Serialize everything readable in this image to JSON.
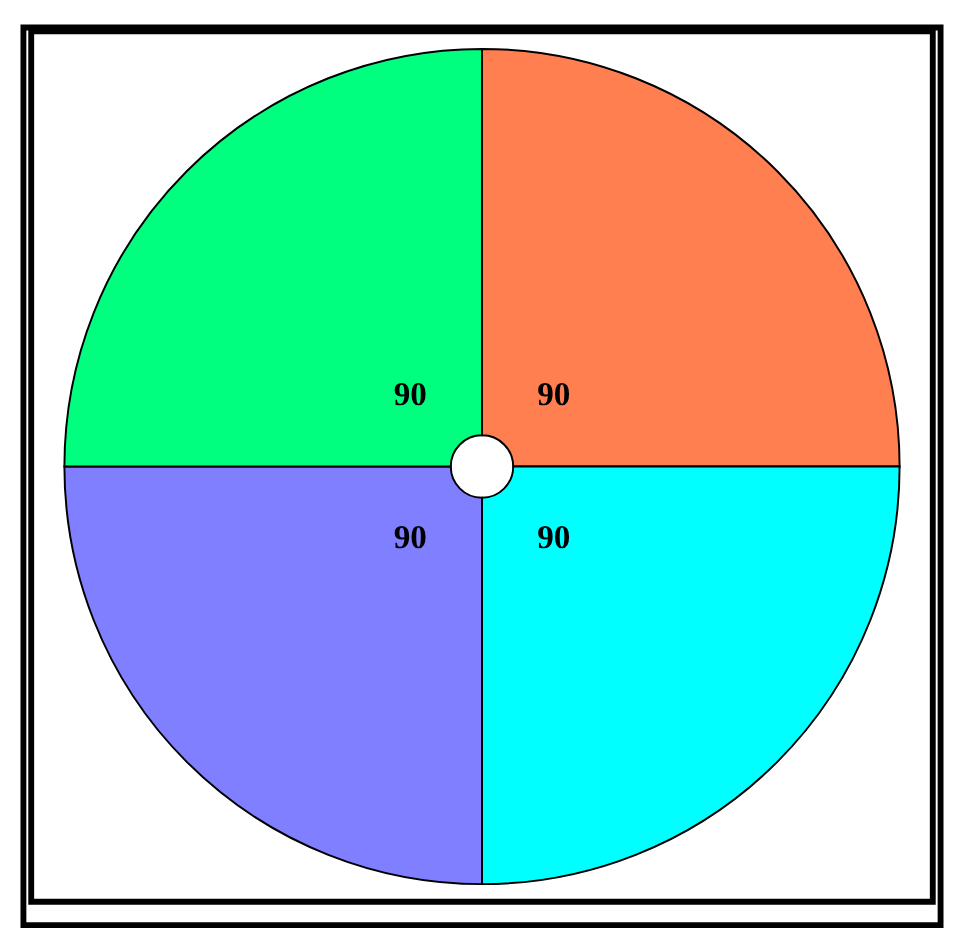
{
  "chart_data": {
    "type": "pie",
    "categories": [
      null,
      null,
      null,
      null
    ],
    "values": [
      90,
      90,
      90,
      90
    ],
    "colors": [
      "#ff7f50",
      "#00ffff",
      "#7f7fff",
      "#00ff7f"
    ],
    "data_labels": true
  }
}
